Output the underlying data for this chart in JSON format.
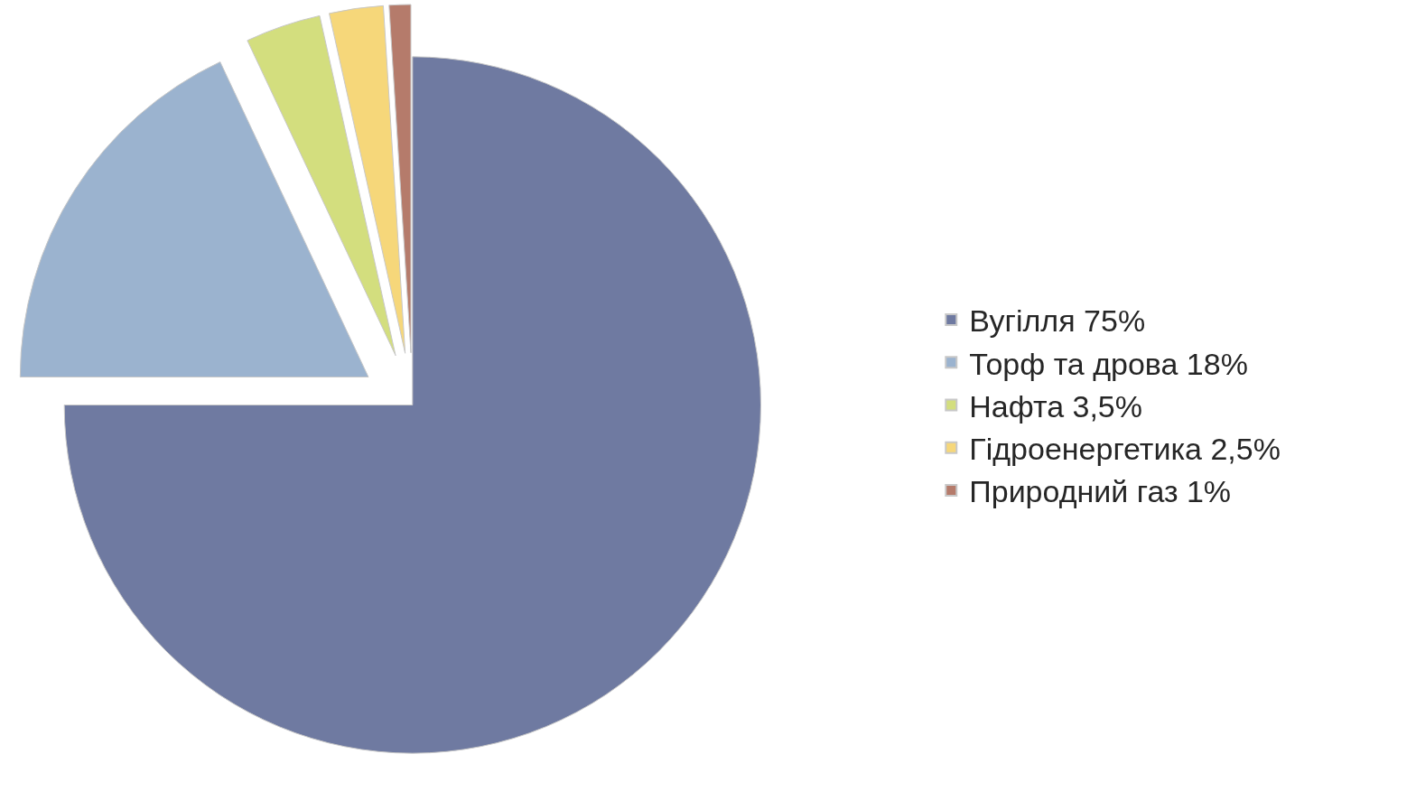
{
  "chart_data": {
    "type": "pie",
    "categories": [
      "Вугілля 75%",
      "Торф та дрова 18%",
      "Нафта 3,5%",
      "Гідроенергетика 2,5%",
      "Природний газ 1%"
    ],
    "values": [
      75,
      18,
      3.5,
      2.5,
      1
    ],
    "colors": [
      "#6f7aa1",
      "#9bb3cf",
      "#d3de7e",
      "#f6d77a",
      "#b57b6b"
    ],
    "legend": "right"
  }
}
